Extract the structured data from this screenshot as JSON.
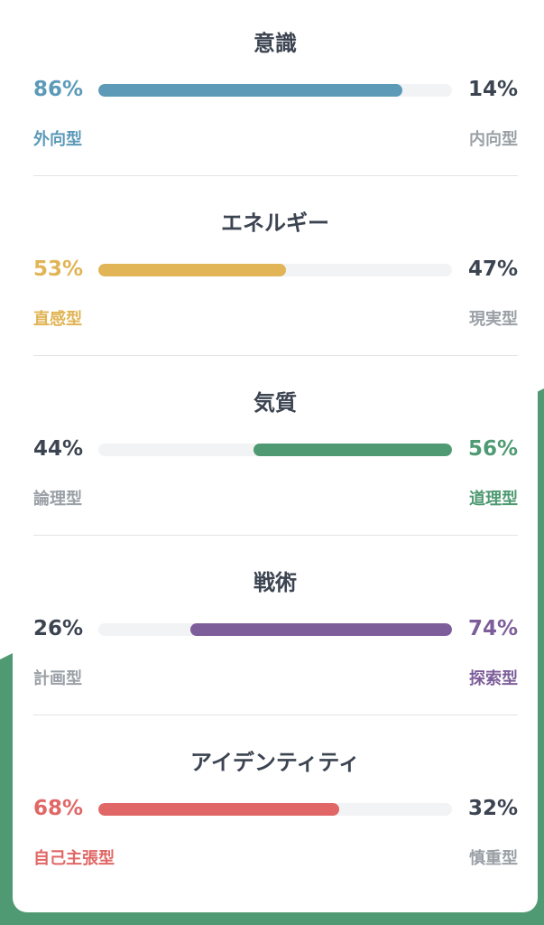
{
  "colors": {
    "background_accent": "#4f9a73",
    "neutral_text": "#3c4451",
    "muted_text": "#9aa0a6",
    "track": "#f2f3f4"
  },
  "traits": [
    {
      "title": "意識",
      "left": {
        "percent": 86,
        "percent_label": "86%",
        "label": "外向型"
      },
      "right": {
        "percent": 14,
        "percent_label": "14%",
        "label": "内向型"
      },
      "dominant": "left",
      "color": "#5c9ab8"
    },
    {
      "title": "エネルギー",
      "left": {
        "percent": 53,
        "percent_label": "53%",
        "label": "直感型"
      },
      "right": {
        "percent": 47,
        "percent_label": "47%",
        "label": "現実型"
      },
      "dominant": "left",
      "color": "#e1b455"
    },
    {
      "title": "気質",
      "left": {
        "percent": 44,
        "percent_label": "44%",
        "label": "論理型"
      },
      "right": {
        "percent": 56,
        "percent_label": "56%",
        "label": "道理型"
      },
      "dominant": "right",
      "color": "#4f9a73"
    },
    {
      "title": "戦術",
      "left": {
        "percent": 26,
        "percent_label": "26%",
        "label": "計画型"
      },
      "right": {
        "percent": 74,
        "percent_label": "74%",
        "label": "探索型"
      },
      "dominant": "right",
      "color": "#7d5e9a"
    },
    {
      "title": "アイデンティティ",
      "left": {
        "percent": 68,
        "percent_label": "68%",
        "label": "自己主張型"
      },
      "right": {
        "percent": 32,
        "percent_label": "32%",
        "label": "慎重型"
      },
      "dominant": "left",
      "color": "#e06766"
    }
  ]
}
